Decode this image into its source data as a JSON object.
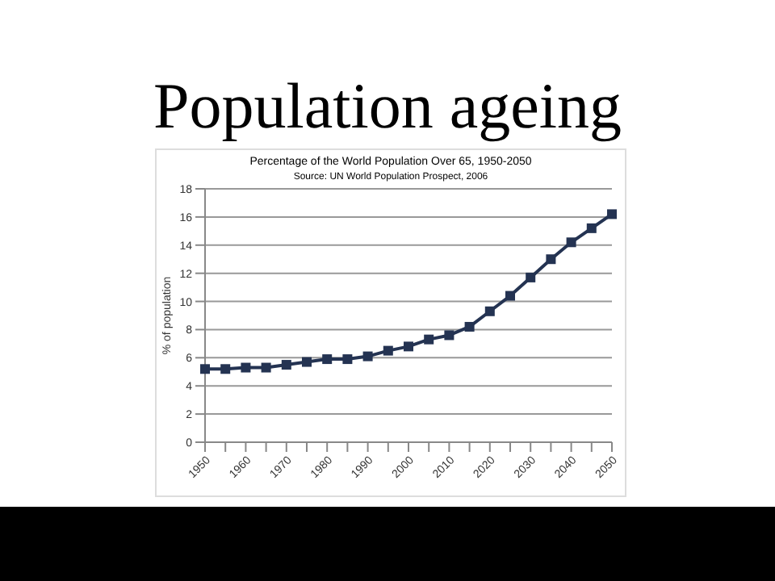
{
  "chart_data": {
    "type": "line",
    "title": "Population ageing",
    "subtitle": "Percentage of the World Population Over 65, 1950-2050",
    "annotations": [
      "Source: UN World Population Prospect, 2006"
    ],
    "ylabel": "% of population",
    "categories": [
      "1950",
      null,
      "1960",
      null,
      "1970",
      null,
      "1980",
      null,
      "1990",
      null,
      "2000",
      null,
      "2010",
      null,
      "2020",
      null,
      "2030",
      null,
      "2040",
      null,
      "2050"
    ],
    "series": [
      {
        "color": "#243352",
        "values": [
          5.2,
          5.2,
          5.3,
          5.3,
          5.5,
          5.7,
          5.9,
          5.9,
          6.1,
          6.5,
          6.8,
          7.3,
          7.6,
          8.2,
          9.3,
          10.4,
          11.7,
          13.0,
          14.2,
          15.2,
          16.2
        ]
      }
    ],
    "ylim": [
      0,
      18
    ],
    "yticks": [
      0,
      2,
      4,
      6,
      8,
      10,
      12,
      14,
      16,
      18
    ],
    "grid": "y",
    "marker": "square",
    "line_style": "solid",
    "legend": false
  }
}
